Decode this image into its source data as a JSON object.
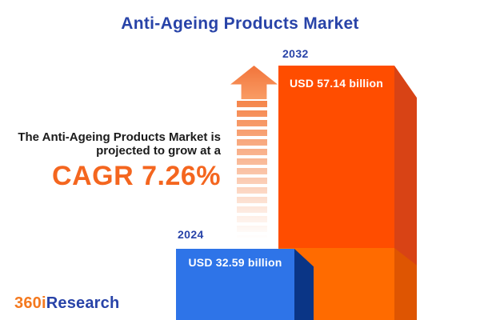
{
  "title": "Anti-Ageing Products Market",
  "description": {
    "line1": "The Anti-Ageing Products Market is",
    "line2": "projected to grow at a",
    "cagr": "CAGR 7.26%"
  },
  "bars": {
    "y2024": {
      "year": "2024",
      "value_label": "USD 32.59 billion",
      "front_color": "#2E74E8",
      "side_color": "#0A3586"
    },
    "y2032": {
      "year": "2032",
      "value_label": "USD 57.14 billion",
      "front_color": "#FF4D00",
      "side_color": "#D84315",
      "overlap_front_color": "#FF6B00",
      "overlap_side_color": "#DE5502"
    }
  },
  "logo": {
    "part1": "360i",
    "part2": "Research"
  },
  "colors": {
    "heading_blue": "#2843A8",
    "cagr_orange": "#F4661F",
    "text_dark": "#1b1b1b",
    "arrow_orange": "#F5854A",
    "logo_orange": "#F4791F"
  },
  "chart_data": {
    "type": "bar",
    "title": "Anti-Ageing Products Market",
    "categories": [
      "2024",
      "2032"
    ],
    "values": [
      32.59,
      57.14
    ],
    "unit": "USD billion",
    "value_labels": [
      "USD 32.59 billion",
      "USD 57.14 billion"
    ],
    "bar_colors": [
      "#2E74E8",
      "#FF4D00"
    ],
    "annotations": [
      "The Anti-Ageing Products Market is projected to grow at a",
      "CAGR 7.26%"
    ],
    "growth_rate_cagr_percent": 7.26,
    "legend_position": "none",
    "grid": false
  }
}
